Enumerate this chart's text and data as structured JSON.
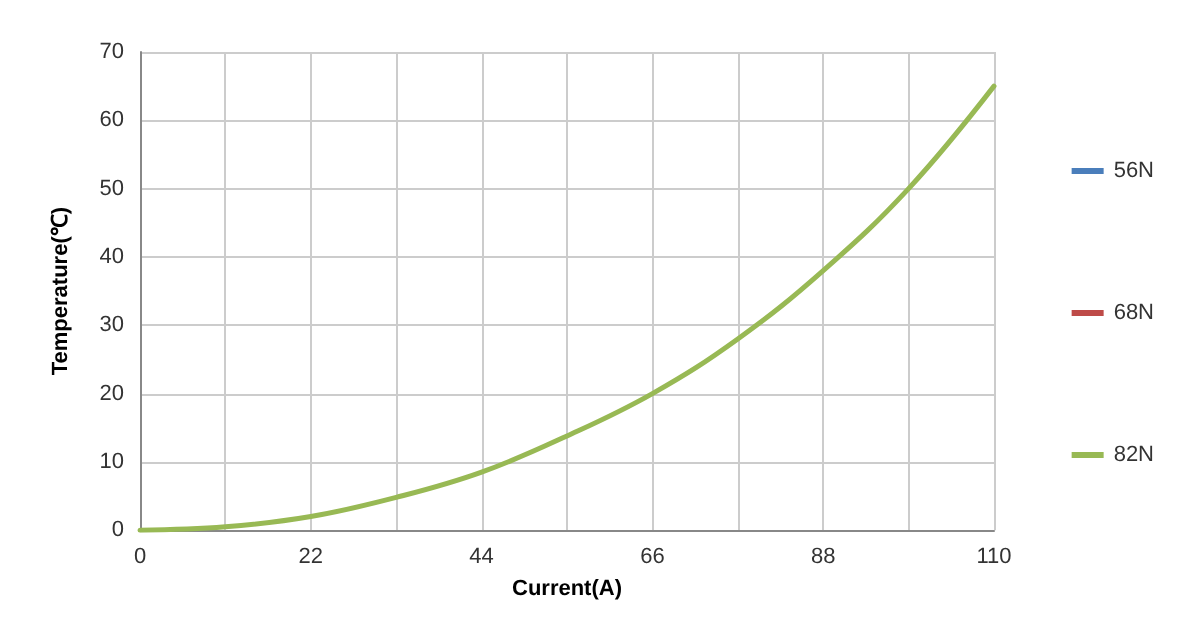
{
  "chart_data": {
    "type": "line",
    "xlabel": "Current(A)",
    "ylabel": "Temperature(℃)",
    "x": [
      0,
      11,
      22,
      33,
      44,
      55,
      66,
      77,
      88,
      99,
      110
    ],
    "series": [
      {
        "name": "56N",
        "color": "#4a7ebb",
        "values": [
          null,
          null,
          null,
          null,
          null,
          null,
          null,
          null,
          null,
          null,
          null
        ]
      },
      {
        "name": "68N",
        "color": "#be4b48",
        "values": [
          null,
          null,
          null,
          null,
          null,
          null,
          null,
          null,
          null,
          null,
          null
        ]
      },
      {
        "name": "82N",
        "color": "#98b954",
        "values": [
          0,
          0.5,
          2,
          4.8,
          8.5,
          13.8,
          20,
          28,
          38,
          50,
          65
        ]
      }
    ],
    "xlim": [
      0,
      110
    ],
    "xticks": [
      0,
      {
        "value": 11,
        "label": null
      },
      22,
      {
        "value": 33,
        "label": null
      },
      44,
      {
        "value": 55,
        "label": null
      },
      66,
      {
        "value": 77,
        "label": null
      },
      88,
      {
        "value": 99,
        "label": null
      },
      110
    ],
    "ylim": [
      0,
      70
    ],
    "yticks": [
      0,
      10,
      20,
      30,
      40,
      50,
      60,
      70
    ],
    "grid": true,
    "legend": "right",
    "marker": "none",
    "line_style": "solid"
  }
}
